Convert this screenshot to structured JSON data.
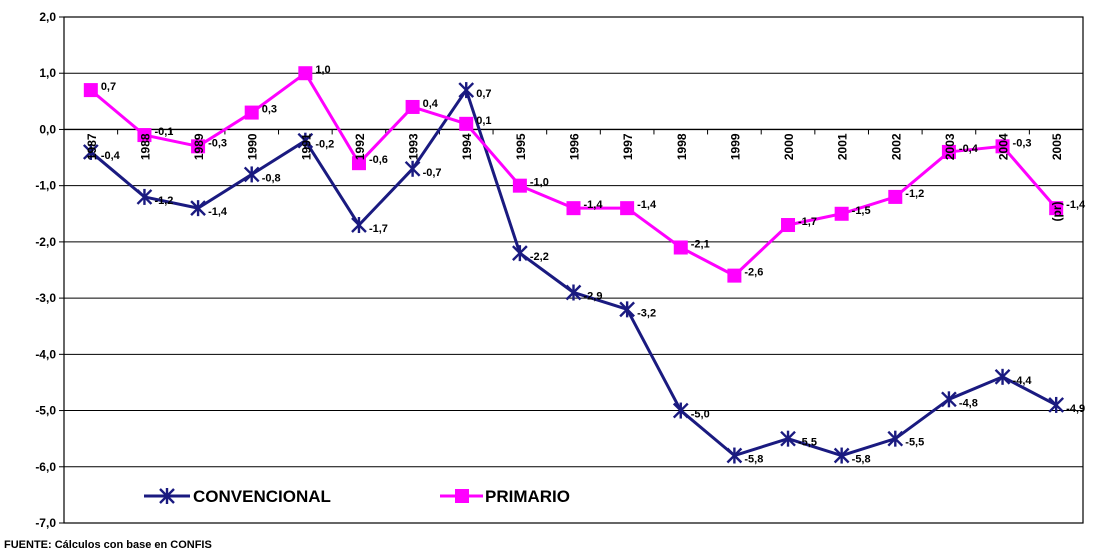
{
  "chart_data": {
    "type": "line",
    "categories": [
      "1987",
      "1988",
      "1989",
      "1990",
      "1991",
      "1992",
      "1993",
      "1994",
      "1995",
      "1996",
      "1997",
      "1998",
      "1999",
      "2000",
      "2001",
      "2002",
      "2003",
      "2004",
      "2005 (pr)"
    ],
    "category_tick_labels": [
      "1987",
      "1988",
      "1989",
      "1990",
      "1991",
      "1992",
      "1993",
      "1994",
      "1995",
      "1996",
      "1997",
      "1998",
      "1999",
      "2000",
      "2001",
      "2002",
      "2003",
      "2004",
      "2005"
    ],
    "category_extra_label": "(pr)",
    "ylim": [
      -7.0,
      2.0
    ],
    "yticks": [
      2.0,
      1.0,
      0.0,
      -1.0,
      -2.0,
      -3.0,
      -4.0,
      -5.0,
      -6.0,
      -7.0
    ],
    "ytick_labels": [
      "2,0",
      "1,0",
      "0,0",
      "-1,0",
      "-2,0",
      "-3,0",
      "-4,0",
      "-5,0",
      "-6,0",
      "-7,0"
    ],
    "grid": "horizontal",
    "legend_position": "bottom-left",
    "series": [
      {
        "name": "CONVENCIONAL",
        "color": "#1a1a80",
        "marker": "asterisk",
        "values": [
          -0.4,
          -1.2,
          -1.4,
          -0.8,
          -0.2,
          -1.7,
          -0.7,
          0.7,
          -2.2,
          -2.9,
          -3.2,
          -5.0,
          -5.8,
          -5.5,
          -5.8,
          -5.5,
          -4.8,
          -4.4,
          -4.9
        ],
        "value_labels": [
          "-0,4",
          "-1,2",
          "-1,4",
          "-0,8",
          "-0,2",
          "-1,7",
          "-0,7",
          "0,7",
          "-2,2",
          "-2,9",
          "-3,2",
          "-5,0",
          "-5,8",
          "-5,5",
          "-5,8",
          "-5,5",
          "-4,8",
          "-4,4",
          "-4,9"
        ]
      },
      {
        "name": "PRIMARIO",
        "color": "#ff00ff",
        "marker": "square",
        "values": [
          0.7,
          -0.1,
          -0.3,
          0.3,
          1.0,
          -0.6,
          0.4,
          0.1,
          -1.0,
          -1.4,
          -1.4,
          -2.1,
          -2.6,
          -1.7,
          -1.5,
          -1.2,
          -0.4,
          -0.3,
          -1.4
        ],
        "value_labels": [
          "0,7",
          "-0,1",
          "-0,3",
          "0,3",
          "1,0",
          "-0,6",
          "0,4",
          "0,1",
          "-1,0",
          "-1,4",
          "-1,4",
          "-2,1",
          "-2,6",
          "-1,7",
          "-1,5",
          "-1,2",
          "-0,4",
          "-0,3",
          "-1,4"
        ]
      }
    ]
  },
  "source_note": "FUENTE: Cálculos con base en CONFIS"
}
